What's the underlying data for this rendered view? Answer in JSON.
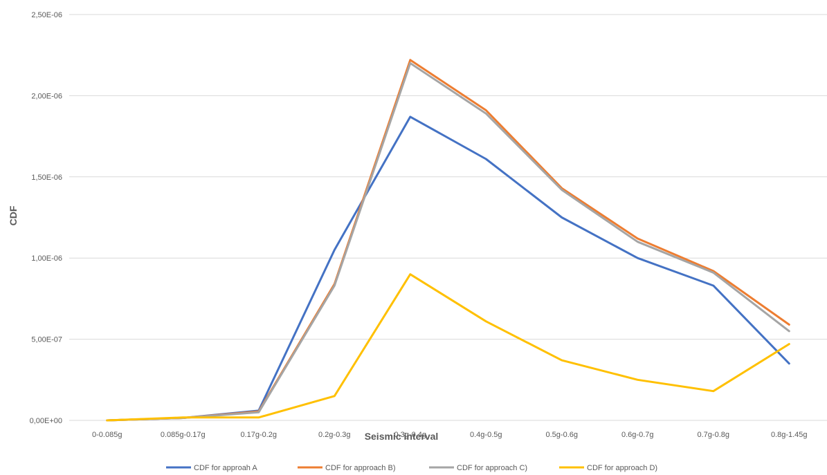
{
  "chart_data": {
    "type": "line",
    "title": "",
    "xlabel": "Seismic interval",
    "ylabel": "CDF",
    "ylim": [
      0,
      2.5e-06
    ],
    "y_ticks": [
      {
        "value": 0,
        "label": "0,00E+00"
      },
      {
        "value": 5e-07,
        "label": "5,00E-07"
      },
      {
        "value": 1e-06,
        "label": "1,00E-06"
      },
      {
        "value": 1.5e-06,
        "label": "1,50E-06"
      },
      {
        "value": 2e-06,
        "label": "2,00E-06"
      },
      {
        "value": 2.5e-06,
        "label": "2,50E-06"
      }
    ],
    "grid": true,
    "legend_position": "bottom",
    "categories": [
      "0-0.085g",
      "0.085g-0.17g",
      "0.17g-0.2g",
      "0.2g-0.3g",
      "0.3g-0.4g",
      "0.4g-0.5g",
      "0.5g-0.6g",
      "0.6g-0.7g",
      "0.7g-0.8g",
      "0.8g-1.45g"
    ],
    "series": [
      {
        "name": "CDF for approah A",
        "color": "#4472C4",
        "values": [
          0,
          1.5e-08,
          6e-08,
          1.05e-06,
          1.87e-06,
          1.61e-06,
          1.25e-06,
          1e-06,
          8.3e-07,
          3.5e-07
        ]
      },
      {
        "name": "CDF for approach B)",
        "color": "#ED7D31",
        "values": [
          0,
          1.5e-08,
          5.5e-08,
          8.4e-07,
          2.22e-06,
          1.91e-06,
          1.43e-06,
          1.12e-06,
          9.2e-07,
          5.9e-07
        ]
      },
      {
        "name": "CDF for approach C)",
        "color": "#A5A5A5",
        "values": [
          0,
          1.5e-08,
          5e-08,
          8.3e-07,
          2.2e-06,
          1.89e-06,
          1.42e-06,
          1.1e-06,
          9.1e-07,
          5.5e-07
        ]
      },
      {
        "name": "CDF for approach D)",
        "color": "#FFC000",
        "values": [
          0,
          1.8e-08,
          1.8e-08,
          1.5e-07,
          9e-07,
          6.1e-07,
          3.7e-07,
          2.5e-07,
          1.8e-07,
          4.7e-07
        ]
      }
    ]
  }
}
